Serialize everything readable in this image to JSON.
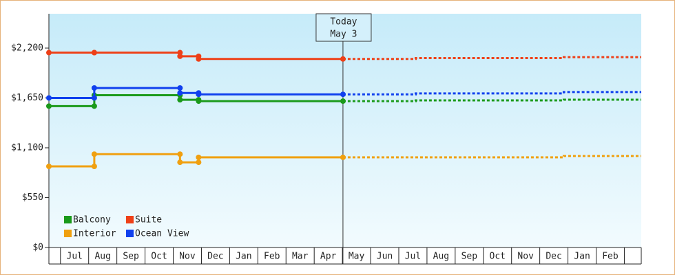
{
  "chart_data": {
    "type": "step-line",
    "ylim": [
      0,
      2579
    ],
    "yticks": [
      {
        "value": 0,
        "label": "$0"
      },
      {
        "value": 550,
        "label": "$550"
      },
      {
        "value": 1100,
        "label": "$1,100"
      },
      {
        "value": 1650,
        "label": "$1,650"
      },
      {
        "value": 2200,
        "label": "$2,200"
      }
    ],
    "xlim": [
      -0.41,
      20.6
    ],
    "categories": [
      "Jul",
      "Aug",
      "Sep",
      "Oct",
      "Nov",
      "Dec",
      "Jan",
      "Feb",
      "Mar",
      "Apr",
      "May",
      "Jun",
      "Jul",
      "Aug",
      "Sep",
      "Oct",
      "Nov",
      "Dec",
      "Jan",
      "Feb"
    ],
    "x": [
      -0.41,
      1.2,
      1.2,
      4.24,
      4.24,
      4.9,
      4.9,
      10.02
    ],
    "projection_x": [
      10.02,
      12.6,
      12.6,
      17.85,
      17.85,
      20.6
    ],
    "annotations": [
      {
        "x": 10.02,
        "text": [
          "Today",
          "May 3"
        ]
      }
    ],
    "legend": "lower-left",
    "series": [
      {
        "name": "Balcony",
        "color": "#1a9a1a",
        "values": [
          1560,
          1560,
          1680,
          1680,
          1630,
          1630,
          1615,
          1615
        ],
        "projection": [
          1615,
          1615,
          1623,
          1623,
          1631,
          1631
        ]
      },
      {
        "name": "Suite",
        "color": "#ee4018",
        "values": [
          2150,
          2150,
          2150,
          2150,
          2110,
          2110,
          2080,
          2080
        ],
        "projection": [
          2080,
          2080,
          2090,
          2090,
          2100,
          2100
        ]
      },
      {
        "name": "Interior",
        "color": "#f0a010",
        "values": [
          895,
          895,
          1030,
          1030,
          940,
          940,
          995,
          995
        ],
        "projection": [
          995,
          995,
          995,
          995,
          1010,
          1010
        ]
      },
      {
        "name": "Ocean View",
        "color": "#1040ee",
        "values": [
          1650,
          1650,
          1760,
          1760,
          1705,
          1705,
          1690,
          1690
        ],
        "projection": [
          1690,
          1690,
          1700,
          1700,
          1715,
          1715
        ]
      }
    ]
  }
}
